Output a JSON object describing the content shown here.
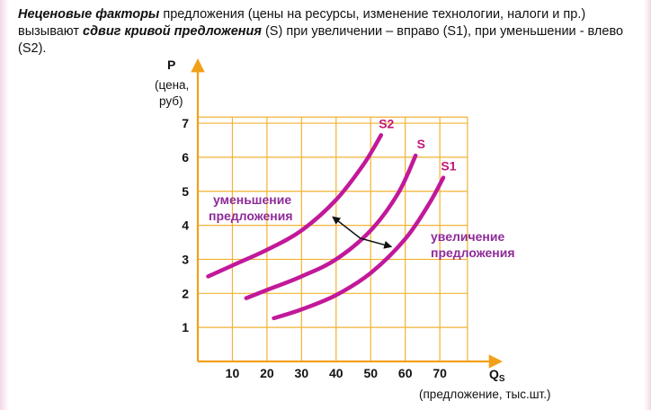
{
  "intro": {
    "part1": "Неценовые факторы",
    "part2": " предложения (цены на ресурсы, изменение технологии, налоги и пр.) вызывают ",
    "part3": "сдвиг кривой предложения",
    "part4": " (S) при увеличении – вправо (S1), при уменьшении - влево (S2)."
  },
  "colors": {
    "curve": "#c2189a",
    "grid": "#f2b233",
    "axis": "#f2a01a",
    "label": "#c2187a",
    "annotation": "#8e2b98"
  },
  "chart_data": {
    "type": "line",
    "xlim": [
      0,
      80
    ],
    "ylim": [
      0,
      7.6
    ],
    "x_ticks": [
      10,
      20,
      30,
      40,
      50,
      60,
      70
    ],
    "y_ticks": [
      1,
      2,
      3,
      4,
      5,
      6,
      7
    ],
    "ylabel": "P",
    "ylabel_sub": [
      "(цена,",
      "руб)"
    ],
    "xlabel_main": "Q",
    "xlabel_subscript": "S",
    "xlabel_sub": "(предложение, тыс.шт.)",
    "grid": true,
    "series": [
      {
        "name": "S2",
        "points": [
          [
            3,
            2.5
          ],
          [
            10,
            2.82
          ],
          [
            20,
            3.28
          ],
          [
            30,
            3.85
          ],
          [
            40,
            4.75
          ],
          [
            48,
            5.8
          ],
          [
            53,
            6.65
          ]
        ]
      },
      {
        "name": "S",
        "points": [
          [
            14,
            1.86
          ],
          [
            20,
            2.1
          ],
          [
            30,
            2.5
          ],
          [
            40,
            3.0
          ],
          [
            50,
            3.85
          ],
          [
            58,
            4.95
          ],
          [
            63,
            6.05
          ]
        ]
      },
      {
        "name": "S1",
        "points": [
          [
            22,
            1.27
          ],
          [
            30,
            1.53
          ],
          [
            40,
            1.95
          ],
          [
            50,
            2.6
          ],
          [
            60,
            3.6
          ],
          [
            67,
            4.65
          ],
          [
            71,
            5.4
          ]
        ]
      }
    ],
    "annotations": {
      "decrease": [
        "уменьшение",
        "предложения"
      ],
      "increase": [
        "увеличение",
        "предложения"
      ]
    },
    "arrows": [
      {
        "from": [
          47,
          3.62
        ],
        "to": [
          39,
          4.25
        ]
      },
      {
        "from": [
          47,
          3.62
        ],
        "to": [
          56,
          3.37
        ]
      }
    ]
  }
}
